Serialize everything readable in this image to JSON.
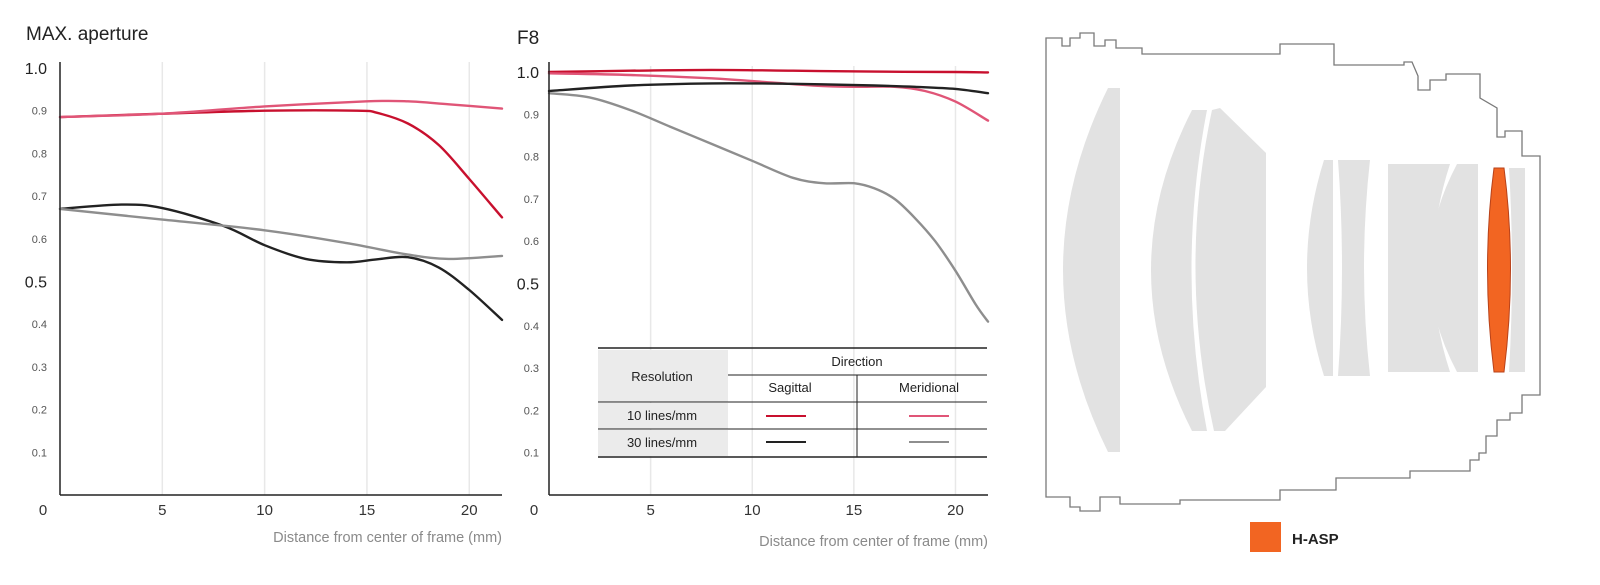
{
  "chart_data": [
    {
      "type": "line",
      "title": "MAX. aperture",
      "xlabel": "Distance from center of frame (mm)",
      "xlim": [
        0,
        21.6
      ],
      "ylim": [
        0,
        1.0
      ],
      "x_ticks": [
        {
          "value": 0,
          "label": "0"
        },
        {
          "value": 5,
          "label": "5"
        },
        {
          "value": 10,
          "label": "10"
        },
        {
          "value": 15,
          "label": "15"
        },
        {
          "value": 20,
          "label": "20"
        }
      ],
      "y_ticks": [
        {
          "value": 1.0,
          "label": "1.0",
          "major": true
        },
        {
          "value": 0.9,
          "label": "0.9",
          "major": false
        },
        {
          "value": 0.8,
          "label": "0.8",
          "major": false
        },
        {
          "value": 0.7,
          "label": "0.7",
          "major": false
        },
        {
          "value": 0.6,
          "label": "0.6",
          "major": false
        },
        {
          "value": 0.5,
          "label": "0.5",
          "major": true
        },
        {
          "value": 0.4,
          "label": "0.4",
          "major": false
        },
        {
          "value": 0.3,
          "label": "0.3",
          "major": false
        },
        {
          "value": 0.2,
          "label": "0.2",
          "major": false
        },
        {
          "value": 0.1,
          "label": "0.1",
          "major": false
        }
      ],
      "grid": "vertical",
      "series": [
        {
          "key": "s10",
          "color": "#c8102e",
          "x": [
            0,
            5,
            10,
            14.5,
            15.5,
            17,
            18.5,
            20,
            21.6
          ],
          "y": [
            0.885,
            0.893,
            0.9,
            0.9,
            0.895,
            0.87,
            0.82,
            0.74,
            0.65
          ]
        },
        {
          "key": "m10",
          "color": "#e05577",
          "x": [
            0,
            5,
            10,
            15,
            17,
            19,
            21.6
          ],
          "y": [
            0.885,
            0.893,
            0.91,
            0.922,
            0.922,
            0.915,
            0.905
          ]
        },
        {
          "key": "s30",
          "color": "#222222",
          "x": [
            0,
            3,
            5,
            8,
            10,
            12,
            14,
            15.5,
            17,
            18.5,
            20,
            21.6
          ],
          "y": [
            0.67,
            0.68,
            0.672,
            0.63,
            0.585,
            0.553,
            0.545,
            0.552,
            0.557,
            0.533,
            0.48,
            0.41
          ]
        },
        {
          "key": "m30",
          "color": "#8e8e8e",
          "x": [
            0,
            5,
            10,
            14,
            17,
            19,
            21.6
          ],
          "y": [
            0.67,
            0.645,
            0.62,
            0.59,
            0.563,
            0.553,
            0.56
          ]
        }
      ]
    },
    {
      "type": "line",
      "title": "F8",
      "xlabel": "Distance from center of frame (mm)",
      "xlim": [
        0,
        21.6
      ],
      "ylim": [
        0,
        1.0
      ],
      "x_ticks": [
        {
          "value": 0,
          "label": "0"
        },
        {
          "value": 5,
          "label": "5"
        },
        {
          "value": 10,
          "label": "10"
        },
        {
          "value": 15,
          "label": "15"
        },
        {
          "value": 20,
          "label": "20"
        }
      ],
      "y_ticks": [
        {
          "value": 1.0,
          "label": "1.0",
          "major": true
        },
        {
          "value": 0.9,
          "label": "0.9",
          "major": false
        },
        {
          "value": 0.8,
          "label": "0.8",
          "major": false
        },
        {
          "value": 0.7,
          "label": "0.7",
          "major": false
        },
        {
          "value": 0.6,
          "label": "0.6",
          "major": false
        },
        {
          "value": 0.5,
          "label": "0.5",
          "major": true
        },
        {
          "value": 0.4,
          "label": "0.4",
          "major": false
        },
        {
          "value": 0.3,
          "label": "0.3",
          "major": false
        },
        {
          "value": 0.2,
          "label": "0.2",
          "major": false
        },
        {
          "value": 0.1,
          "label": "0.1",
          "major": false
        }
      ],
      "grid": "vertical",
      "series": [
        {
          "key": "s10",
          "color": "#c8102e",
          "x": [
            0,
            4,
            8,
            12,
            16,
            20,
            21.6
          ],
          "y": [
            1.0,
            1.003,
            1.005,
            1.003,
            1.001,
            1.0,
            0.999
          ]
        },
        {
          "key": "m10",
          "color": "#e05577",
          "x": [
            0,
            4,
            8,
            11,
            13,
            15,
            17,
            18.5,
            20,
            21.6
          ],
          "y": [
            0.997,
            0.993,
            0.985,
            0.975,
            0.968,
            0.965,
            0.965,
            0.955,
            0.93,
            0.885
          ]
        },
        {
          "key": "s30",
          "color": "#222222",
          "x": [
            0,
            4,
            8,
            12,
            16,
            18,
            20,
            21.6
          ],
          "y": [
            0.955,
            0.968,
            0.973,
            0.972,
            0.968,
            0.965,
            0.96,
            0.95
          ]
        },
        {
          "key": "m30",
          "color": "#8e8e8e",
          "x": [
            0,
            2,
            4,
            6,
            8,
            10,
            12,
            13.5,
            15,
            16,
            17,
            18,
            19,
            20,
            21,
            21.6
          ],
          "y": [
            0.95,
            0.94,
            0.91,
            0.87,
            0.83,
            0.79,
            0.75,
            0.737,
            0.737,
            0.725,
            0.7,
            0.655,
            0.6,
            0.53,
            0.45,
            0.41
          ]
        }
      ],
      "legend": {
        "placement": "bottom-right",
        "header_resolution": "Resolution",
        "header_direction": "Direction",
        "col_sagittal": "Sagittal",
        "col_meridional": "Meridional",
        "row_10": "10 lines/mm",
        "row_30": "30 lines/mm"
      }
    }
  ],
  "diagram": {
    "highlight_label": "H-ASP",
    "highlight_color": "#f26522",
    "lens_color": "#e2e2e2",
    "housing_color": "#7a7a7a"
  }
}
